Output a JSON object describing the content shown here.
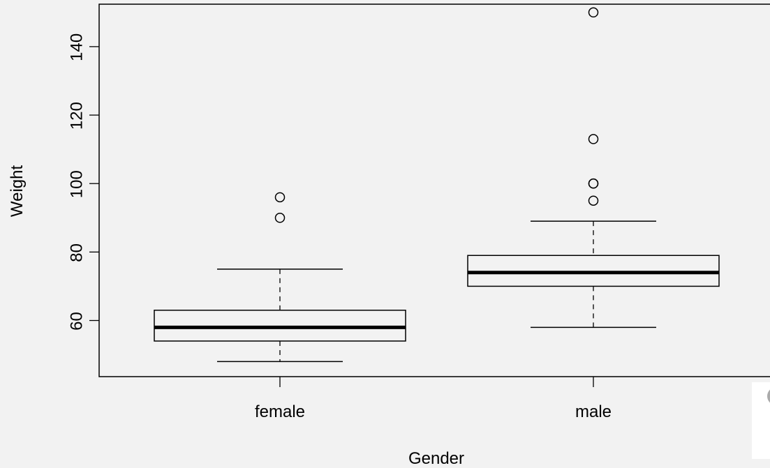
{
  "chart_data": {
    "type": "boxplot",
    "title": "",
    "xlabel": "Gender",
    "ylabel": "Weight",
    "ylim": [
      43.6,
      152.4
    ],
    "yticks": [
      60,
      80,
      100,
      120,
      140
    ],
    "grid": false,
    "categories": [
      "female",
      "male"
    ],
    "boxes": [
      {
        "category": "female",
        "whisker_low": 48,
        "q1": 54,
        "median": 58,
        "q3": 63,
        "whisker_high": 75,
        "outliers": [
          90,
          96
        ]
      },
      {
        "category": "male",
        "whisker_low": 58,
        "q1": 70,
        "median": 74,
        "q3": 79,
        "whisker_high": 89,
        "outliers": [
          95,
          100,
          100,
          113,
          150
        ]
      }
    ]
  }
}
